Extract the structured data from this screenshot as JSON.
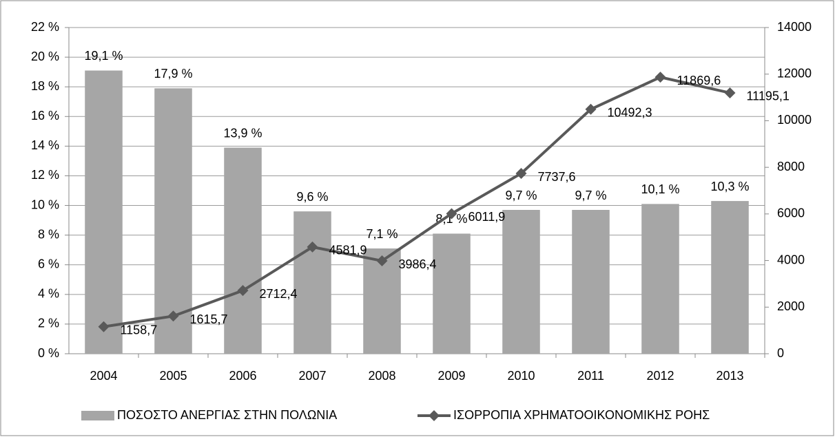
{
  "chart_data": {
    "type": "bar",
    "categories": [
      "2004",
      "2005",
      "2006",
      "2007",
      "2008",
      "2009",
      "2010",
      "2011",
      "2012",
      "2013"
    ],
    "series": [
      {
        "name": "ΠΟΣΟΣΤΟ ΑΝΕΡΓΙΑΣ ΣΤΗΝ ΠΟΛΩΝΙΑ",
        "type": "bar",
        "color": "#a6a6a6",
        "values": [
          19.1,
          17.9,
          13.9,
          9.6,
          7.1,
          8.1,
          9.7,
          9.7,
          10.1,
          10.3
        ],
        "value_labels": [
          "19,1 %",
          "17,9 %",
          "13,9 %",
          "9,6 %",
          "7,1 %",
          "8,1 %",
          "9,7 %",
          "9,7 %",
          "10,1 %",
          "10,3 %"
        ]
      },
      {
        "name": "ΙΣΟΡΡΟΠΙΑ ΧΡΗΜΑΤΟΟΙΚΟΝΟΜΙΚΗΣ ΡΟΗΣ",
        "type": "line",
        "axis": "y2",
        "color": "#595959",
        "values": [
          1158.7,
          1615.7,
          2712.4,
          4581.9,
          3986.4,
          6011.9,
          7737.6,
          10492.3,
          11869.6,
          11195.1
        ],
        "value_labels": [
          "1158,7",
          "1615,7",
          "2712,4",
          "4581,9",
          "3986,4",
          "6011,9",
          "7737,6",
          "10492,3",
          "11869,6",
          "11195,1"
        ]
      }
    ],
    "ylim": [
      0,
      22
    ],
    "yticks": [
      {
        "value": 0,
        "label": "0 %"
      },
      {
        "value": 2,
        "label": "2 %"
      },
      {
        "value": 4,
        "label": "4 %"
      },
      {
        "value": 6,
        "label": "6 %"
      },
      {
        "value": 8,
        "label": "8 %"
      },
      {
        "value": 10,
        "label": "10 %"
      },
      {
        "value": 12,
        "label": "12 %"
      },
      {
        "value": 14,
        "label": "14 %"
      },
      {
        "value": 16,
        "label": "16 %"
      },
      {
        "value": 18,
        "label": "18 %"
      },
      {
        "value": 20,
        "label": "20 %"
      },
      {
        "value": 22,
        "label": "22 %"
      }
    ],
    "y2lim": [
      0,
      14000
    ],
    "y2ticks": [
      0,
      2000,
      4000,
      6000,
      8000,
      10000,
      12000,
      14000
    ],
    "grid": true
  }
}
